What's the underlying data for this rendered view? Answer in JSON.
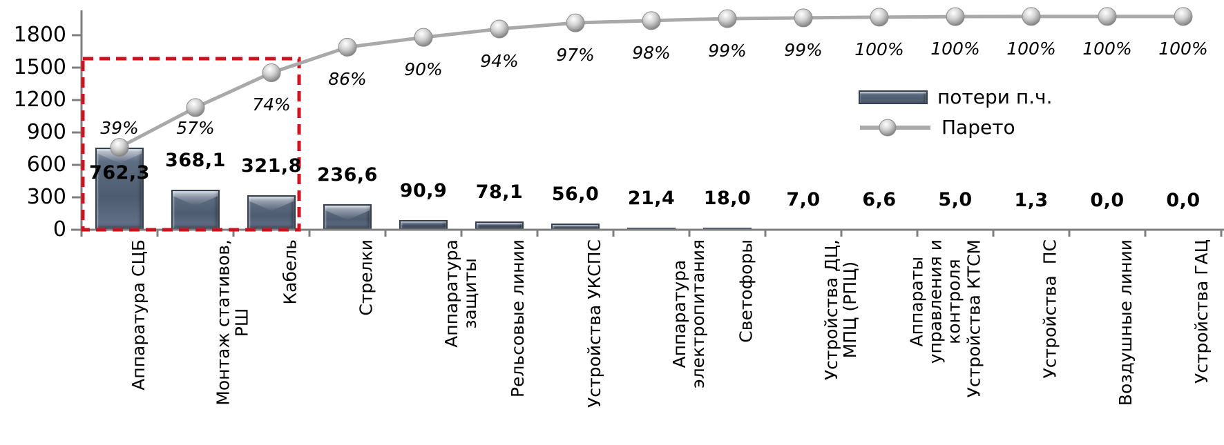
{
  "chart_data": {
    "type": "pareto (bar + cumulative line)",
    "title": "",
    "xlabel": "",
    "ylabel": "",
    "grid": false,
    "categories": [
      [
        "Аппаратура СЦБ"
      ],
      [
        "Монтаж стативов,",
        "РШ"
      ],
      [
        "Кабель"
      ],
      [
        "Стрелки"
      ],
      [
        "Аппаратура",
        "защиты"
      ],
      [
        "Рельсовые линии"
      ],
      [
        "Устройства УКСПС"
      ],
      [
        "Аппаратура",
        "электропитания"
      ],
      [
        "Светофоры"
      ],
      [
        "Устройства ДЦ,",
        "МПЦ (РПЦ)"
      ],
      [
        "Аппараты",
        "управления и",
        "контроля"
      ],
      [
        "Устройства КТСМ"
      ],
      [
        "Устройства  ПС"
      ],
      [
        "Воздушные линии"
      ],
      [
        "Устройства ГАЦ"
      ]
    ],
    "bar_series": {
      "name": "потери п.ч.",
      "values": [
        762.3,
        368.1,
        321.8,
        236.6,
        90.9,
        78.1,
        56.0,
        21.4,
        18.0,
        7.0,
        6.6,
        5.0,
        1.3,
        0.0,
        0.0
      ],
      "value_labels": [
        "762,3",
        "368,1",
        "321,8",
        "236,6",
        "90,9",
        "78,1",
        "56,0",
        "21,4",
        "18,0",
        "7,0",
        "6,6",
        "5,0",
        "1,3",
        "0,0",
        "0,0"
      ]
    },
    "line_series": {
      "name": "Парето",
      "pct_labels": [
        "39%",
        "57%",
        "74%",
        "86%",
        "90%",
        "94%",
        "97%",
        "98%",
        "99%",
        "99%",
        "100%",
        "100%",
        "100%",
        "100%",
        "100%"
      ]
    },
    "y_axis": {
      "tick_values": [
        0,
        300,
        600,
        900,
        1200,
        1500,
        1800
      ],
      "max": 2000
    },
    "legend": {
      "position": "inside top-right"
    },
    "highlight_box": {
      "covers_first_n_categories": 3,
      "style": "red dashed rectangle"
    },
    "colors": {
      "bar_fill": "#56647a",
      "bar_border": "#343f50",
      "line": "#a9a9a9",
      "marker": "#c9c9c9",
      "axis": "#7f7f7f",
      "text": "#000000",
      "highlight_box": "#d0121f"
    }
  }
}
